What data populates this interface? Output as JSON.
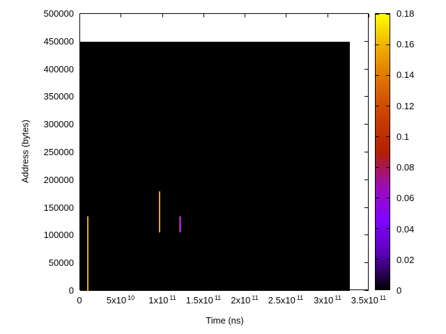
{
  "chart_data": {
    "type": "heatmap",
    "title": "",
    "xlabel": "Time (ns)",
    "ylabel": "Address (bytes)",
    "xlim": [
      0,
      350000000000
    ],
    "ylim": [
      0,
      500000
    ],
    "grid": false,
    "legend_position": "none",
    "x_ticks": [
      {
        "value": 0,
        "mantissa": "0",
        "exponent": ""
      },
      {
        "value": 50000000000,
        "mantissa": "5x10",
        "exponent": "10"
      },
      {
        "value": 100000000000,
        "mantissa": "1x10",
        "exponent": "11"
      },
      {
        "value": 150000000000,
        "mantissa": "1.5x10",
        "exponent": "11"
      },
      {
        "value": 200000000000,
        "mantissa": "2x10",
        "exponent": "11"
      },
      {
        "value": 250000000000,
        "mantissa": "2.5x10",
        "exponent": "11"
      },
      {
        "value": 300000000000,
        "mantissa": "3x10",
        "exponent": "11"
      },
      {
        "value": 350000000000,
        "mantissa": "3.5x10",
        "exponent": "11"
      }
    ],
    "y_ticks": [
      {
        "value": 0,
        "label": "0"
      },
      {
        "value": 50000,
        "label": "50000"
      },
      {
        "value": 100000,
        "label": "100000"
      },
      {
        "value": 150000,
        "label": "150000"
      },
      {
        "value": 200000,
        "label": "200000"
      },
      {
        "value": 250000,
        "label": "250000"
      },
      {
        "value": 300000,
        "label": "300000"
      },
      {
        "value": 350000,
        "label": "350000"
      },
      {
        "value": 400000,
        "label": "400000"
      },
      {
        "value": 450000,
        "label": "450000"
      },
      {
        "value": 500000,
        "label": "500000"
      }
    ],
    "background_region": {
      "t_min": 0,
      "t_max": 326000000000,
      "addr_min": 0,
      "addr_max": 450000,
      "value": 0,
      "color": "#000000"
    },
    "events": [
      {
        "time": 9000000000,
        "addr_from": 0,
        "addr_to": 135000,
        "value": 0.16,
        "colors": [
          "#edaa12"
        ]
      },
      {
        "time": 96000000000,
        "addr_from": 105000,
        "addr_to": 180000,
        "value": 0.16,
        "colors": [
          "#edaa12"
        ]
      },
      {
        "time": 120500000000,
        "addr_from": 105000,
        "addr_to": 135000,
        "value": 0.065,
        "colors": [
          "#bb2277",
          "#7b2be0"
        ]
      }
    ],
    "colorbar": {
      "min": 0,
      "max": 0.18,
      "ticks": [
        "0",
        "0.02",
        "0.04",
        "0.06",
        "0.08",
        "0.1",
        "0.12",
        "0.14",
        "0.16",
        "0.18"
      ],
      "palette_name": "gnuplot-rgbformulae-7-5-15",
      "palette_stops": [
        {
          "pos": 0.0,
          "color": "#000000"
        },
        {
          "pos": 0.125,
          "color": "#5a00b4"
        },
        {
          "pos": 0.25,
          "color": "#8004ff"
        },
        {
          "pos": 0.375,
          "color": "#9c0db4"
        },
        {
          "pos": 0.5,
          "color": "#b42000"
        },
        {
          "pos": 0.625,
          "color": "#c93e00"
        },
        {
          "pos": 0.75,
          "color": "#dd6c00"
        },
        {
          "pos": 0.875,
          "color": "#eeab00"
        },
        {
          "pos": 1.0,
          "color": "#ffff00"
        }
      ]
    }
  }
}
